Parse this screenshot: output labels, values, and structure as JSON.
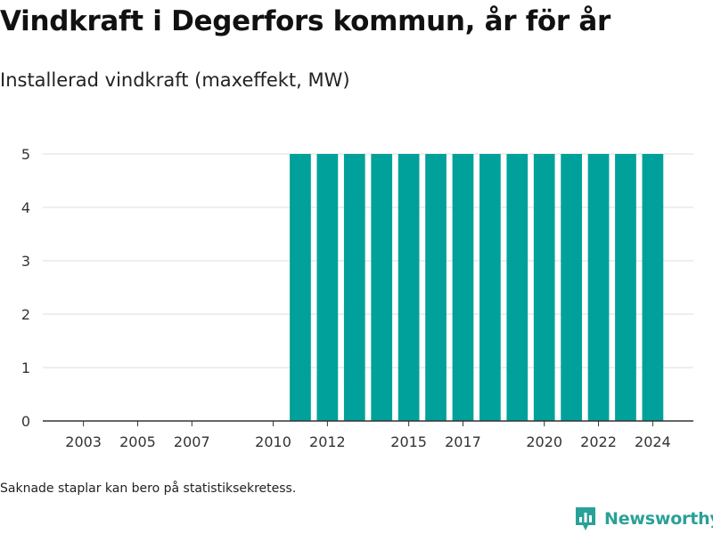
{
  "title": "Vindkraft i Degerfors kommun, år för år",
  "subtitle": "Installerad vindkraft (maxeffekt, MW)",
  "footnote": "Saknade staplar kan bero på statistiksekretess.",
  "brand": {
    "name": "Newsworthy",
    "icon": "newsworthy-logo-icon",
    "color": "#2aa198"
  },
  "chart_data": {
    "type": "bar",
    "title": "",
    "xlabel": "",
    "ylabel": "",
    "bar_color": "#00a19a",
    "ylim": [
      0,
      5
    ],
    "yticks": [
      0,
      1,
      2,
      3,
      4,
      5
    ],
    "xlim": [
      2001.5,
      2025.5
    ],
    "xticks": [
      2003,
      2005,
      2007,
      2010,
      2012,
      2015,
      2017,
      2020,
      2022,
      2024
    ],
    "grid": true,
    "categories": [
      2011,
      2012,
      2013,
      2014,
      2015,
      2016,
      2017,
      2018,
      2019,
      2020,
      2021,
      2022,
      2023,
      2024
    ],
    "values": [
      5,
      5,
      5,
      5,
      5,
      5,
      5,
      5,
      5,
      5,
      5,
      5,
      5,
      5
    ]
  }
}
